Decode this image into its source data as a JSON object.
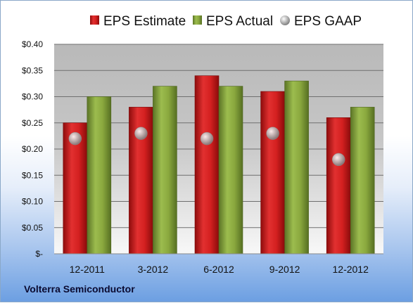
{
  "chart_data": {
    "type": "bar",
    "categories": [
      "12-2011",
      "3-2012",
      "6-2012",
      "9-2012",
      "12-2012"
    ],
    "series": [
      {
        "name": "EPS Estimate",
        "kind": "bar",
        "color": "#d42020",
        "values": [
          0.25,
          0.28,
          0.34,
          0.31,
          0.26
        ]
      },
      {
        "name": "EPS Actual",
        "kind": "bar",
        "color": "#8aa83e",
        "values": [
          0.3,
          0.32,
          0.32,
          0.33,
          0.28
        ]
      },
      {
        "name": "EPS GAAP",
        "kind": "marker",
        "color": "#a8a8a8",
        "values": [
          0.22,
          0.23,
          0.22,
          0.23,
          0.18
        ]
      }
    ],
    "yticks": [
      {
        "value": 0.4,
        "label": "$0.40"
      },
      {
        "value": 0.35,
        "label": "$0.35"
      },
      {
        "value": 0.3,
        "label": "$0.30"
      },
      {
        "value": 0.25,
        "label": "$0.25"
      },
      {
        "value": 0.2,
        "label": "$0.20"
      },
      {
        "value": 0.15,
        "label": "$0.15"
      },
      {
        "value": 0.1,
        "label": "$0.10"
      },
      {
        "value": 0.05,
        "label": "$0.05"
      },
      {
        "value": 0.0,
        "label": "$-"
      }
    ],
    "ylim": [
      0,
      0.4
    ],
    "grid": true,
    "legend_position": "top"
  },
  "footer": {
    "label": "Volterra Semiconductor"
  }
}
